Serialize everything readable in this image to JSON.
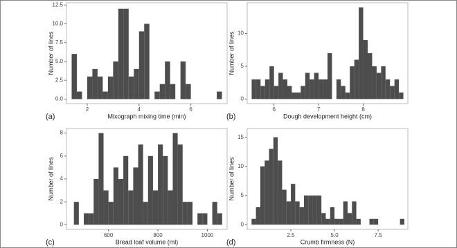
{
  "chart_data": [
    {
      "type": "histogram",
      "panel_label": "(a)",
      "xlabel": "Mixograph mixing time (min)",
      "ylabel": "Number of lines",
      "color": "#4d4d4d",
      "grid": false,
      "bins": [
        1.4,
        1.6,
        1.8,
        2.0,
        2.2,
        2.4,
        2.6,
        2.8,
        3.0,
        3.2,
        3.4,
        3.6,
        3.8,
        4.0,
        4.2,
        4.4,
        4.6,
        4.8,
        5.0,
        5.2,
        5.4,
        5.6,
        5.8,
        6.0,
        6.2,
        6.4,
        6.6,
        6.8,
        7.0,
        7.2
      ],
      "counts": [
        6,
        1,
        0,
        3,
        4,
        3,
        1,
        3,
        5,
        12,
        12,
        3,
        4,
        9,
        10,
        0,
        1,
        2,
        5,
        2,
        0,
        5,
        2,
        0,
        0,
        0,
        0,
        0,
        1
      ],
      "xlim": [
        1.2,
        7.4
      ],
      "ylim": [
        -0.6,
        12.8
      ],
      "xticks": [
        2,
        4,
        6
      ],
      "yticks": [
        {
          "value": 0,
          "label": "0.0"
        },
        2.5,
        {
          "value": 5,
          "label": "5.0"
        },
        7.5,
        {
          "value": 10,
          "label": "10.0"
        },
        12.5
      ]
    },
    {
      "type": "histogram",
      "panel_label": "(b)",
      "xlabel": "Dough development height (cm)",
      "ylabel": "Number of lines",
      "color": "#4d4d4d",
      "grid": false,
      "bins": [
        5.5,
        5.6,
        5.7,
        5.8,
        5.9,
        6.0,
        6.1,
        6.2,
        6.3,
        6.4,
        6.5,
        6.6,
        6.7,
        6.8,
        6.9,
        7.0,
        7.1,
        7.2,
        7.3,
        7.4,
        7.5,
        7.6,
        7.7,
        7.8,
        7.9,
        8.0,
        8.1,
        8.2,
        8.3,
        8.4,
        8.5,
        8.6,
        8.7,
        8.8,
        8.9
      ],
      "counts": [
        3,
        3,
        2,
        3,
        5,
        2,
        4,
        3,
        2,
        1,
        1,
        2,
        4,
        3,
        4,
        3,
        3,
        7,
        0,
        3,
        2,
        1,
        5,
        6,
        14,
        9,
        7,
        5,
        4,
        5,
        3,
        2,
        3,
        1
      ],
      "xlim": [
        5.4,
        9.0
      ],
      "ylim": [
        -0.7,
        14.7
      ],
      "xticks": [
        6,
        7,
        8
      ],
      "yticks": [
        0,
        5,
        10
      ]
    },
    {
      "type": "histogram",
      "panel_label": "(c)",
      "xlabel": "Bread loaf volume (ml)",
      "ylabel": "Number of lines",
      "color": "#4d4d4d",
      "grid": false,
      "bins": [
        460,
        480,
        500,
        520,
        540,
        560,
        580,
        600,
        620,
        640,
        660,
        680,
        700,
        720,
        740,
        760,
        780,
        800,
        820,
        840,
        860,
        880,
        900,
        920,
        940,
        960,
        980,
        1000,
        1020,
        1040,
        1060
      ],
      "counts": [
        2,
        0,
        1,
        1,
        4,
        8,
        3,
        2,
        5,
        4,
        6,
        3,
        5,
        7,
        2,
        6,
        3,
        7,
        6,
        3,
        8,
        7,
        2,
        2,
        0,
        1,
        1,
        0,
        2,
        1
      ],
      "xlim": [
        430,
        1080
      ],
      "ylim": [
        -0.4,
        8.4
      ],
      "xticks": [
        600,
        800,
        1000
      ],
      "yticks": [
        0,
        2,
        4,
        6,
        8
      ]
    },
    {
      "type": "histogram",
      "panel_label": "(d)",
      "xlabel": "Crumb firmness (N)",
      "ylabel": "Number of lines",
      "color": "#4d4d4d",
      "grid": false,
      "bins": [
        0.25,
        0.5,
        0.75,
        1.0,
        1.25,
        1.5,
        1.75,
        2.0,
        2.25,
        2.5,
        2.75,
        3.0,
        3.25,
        3.5,
        3.75,
        4.0,
        4.25,
        4.5,
        4.75,
        5.0,
        5.25,
        5.5,
        5.75,
        6.0,
        6.25,
        6.5,
        6.75,
        7.0,
        7.25,
        7.5,
        7.75,
        8.0,
        8.25,
        8.5,
        8.75,
        9.0
      ],
      "counts": [
        1,
        3,
        10,
        11,
        13,
        15,
        11,
        6,
        4,
        7,
        4,
        3,
        5,
        5,
        5,
        5,
        2,
        1,
        3,
        1,
        1,
        4,
        2,
        4,
        1,
        0,
        0,
        1,
        1,
        0,
        0,
        0,
        0,
        0,
        1
      ],
      "xlim": [
        0,
        9.2
      ],
      "ylim": [
        -0.8,
        16.5
      ],
      "xticks": [
        2.5,
        {
          "value": 5,
          "label": "5.0"
        },
        7.5
      ],
      "yticks": [
        0,
        5,
        10,
        15
      ]
    }
  ]
}
